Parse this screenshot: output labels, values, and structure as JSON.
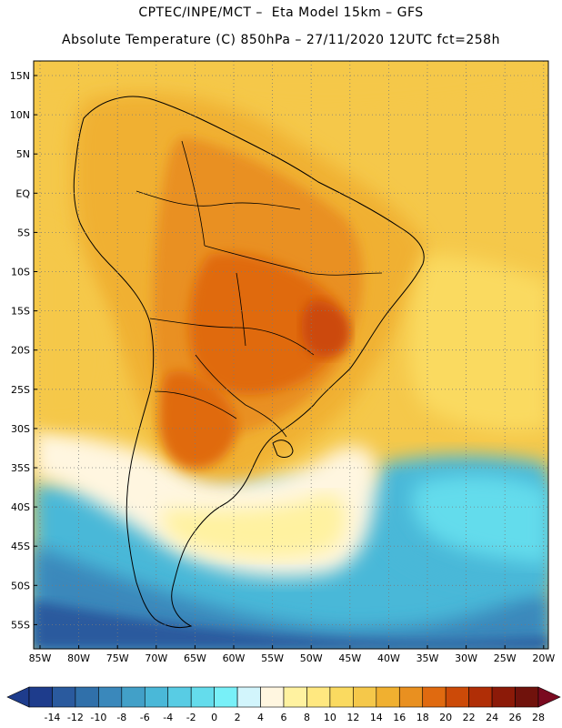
{
  "header": {
    "line1": "CPTEC/INPE/MCT –  Eta Model 15km – GFS",
    "line2": "Absolute Temperature (C) 850hPa – 27/11/2020 12UTC fct=258h"
  },
  "map": {
    "lat_labels": [
      "15N",
      "10N",
      "5N",
      "EQ",
      "5S",
      "10S",
      "15S",
      "20S",
      "25S",
      "30S",
      "35S",
      "40S",
      "45S",
      "50S",
      "55S"
    ],
    "lon_labels": [
      "85W",
      "80W",
      "75W",
      "70W",
      "65W",
      "60W",
      "55W",
      "50W",
      "45W",
      "40W",
      "35W",
      "30W",
      "25W",
      "20W"
    ]
  },
  "colorbar": {
    "tick_labels": [
      "-14",
      "-12",
      "-10",
      "-8",
      "-6",
      "-4",
      "-2",
      "0",
      "2",
      "4",
      "6",
      "8",
      "10",
      "12",
      "14",
      "16",
      "18",
      "20",
      "22",
      "24",
      "26",
      "28"
    ],
    "colors": [
      "#1e3c8c",
      "#2a5a9e",
      "#3070aa",
      "#3a88bb",
      "#42a0c8",
      "#4ab8d8",
      "#58cce4",
      "#64dcec",
      "#78f0f8",
      "#d2f5fc",
      "#fff6e0",
      "#fff2a0",
      "#ffe880",
      "#fada60",
      "#f5c84a",
      "#f0b030",
      "#e99020",
      "#e06a10",
      "#cc4a08",
      "#b02e06",
      "#8c1a08",
      "#70120c"
    ]
  },
  "field": {
    "colors": {
      "cold_deep": "#2a5a9e",
      "cold": "#3a88bb",
      "cool": "#4ab8d8",
      "cyan": "#64dcec",
      "pale": "#fff6e0",
      "light_yellow": "#fff2a0",
      "yellow": "#fada60",
      "gold": "#f5c84a",
      "orange_light": "#f0b030",
      "orange": "#e99020",
      "dark_orange": "#e06a10",
      "red": "#cc4a08"
    }
  }
}
